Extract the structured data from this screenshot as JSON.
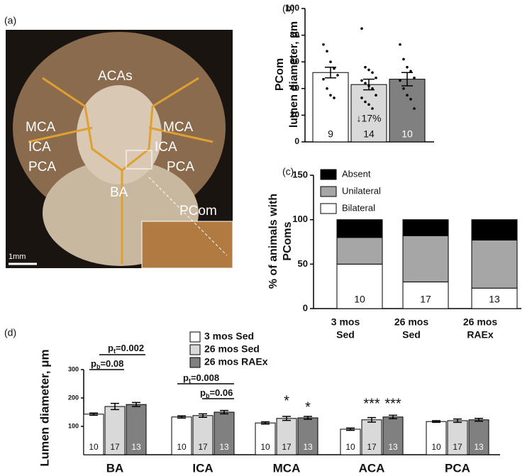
{
  "panel_labels": [
    "(a)",
    "(b)",
    "(c)",
    "(d)"
  ],
  "photo": {
    "labels": [
      "ACAs",
      "MCA",
      "ICA",
      "PCA",
      "MCA",
      "ICA",
      "PCA",
      "BA",
      "PCom"
    ],
    "scale_bar": "1mm"
  },
  "chart_data": [
    {
      "type": "bar",
      "ylabel": [
        "PCom",
        "lumen diameter, μm"
      ],
      "categories": [
        "3 mos Sed",
        "26 mos Sed",
        "26 mos RAEx"
      ],
      "values": [
        52,
        43,
        47
      ],
      "errors": [
        4,
        4,
        5
      ],
      "counts": [
        9,
        14,
        10
      ],
      "colors": [
        "#ffffff",
        "#d9d9d9",
        "#808080"
      ],
      "points": [
        [
          73,
          68,
          60,
          55,
          50,
          47,
          40,
          35,
          33
        ],
        [
          85,
          56,
          54,
          52,
          48,
          46,
          44,
          42,
          40,
          35,
          33,
          30,
          28,
          25
        ],
        [
          73,
          62,
          56,
          53,
          48,
          46,
          40,
          35,
          32,
          25
        ]
      ],
      "annotation": "↓17%",
      "ylim": [
        0,
        100
      ],
      "yticks": [
        0,
        20,
        40,
        60,
        80,
        100
      ]
    },
    {
      "type": "stacked_bar",
      "ylabel": [
        "% of animals with",
        "PComs"
      ],
      "categories": [
        [
          "3 mos",
          "Sed"
        ],
        [
          "26 mos",
          "Sed"
        ],
        [
          "26 mos",
          "RAEx"
        ]
      ],
      "series": [
        {
          "name": "Bilateral",
          "color": "#ffffff",
          "values": [
            50,
            30,
            23
          ]
        },
        {
          "name": "Unilateral",
          "color": "#a6a6a6",
          "values": [
            30,
            52,
            54
          ]
        },
        {
          "name": "Absent",
          "color": "#000000",
          "values": [
            20,
            18,
            23
          ]
        }
      ],
      "counts": [
        10,
        17,
        13
      ],
      "ylim": [
        0,
        150
      ],
      "yticks": [
        0,
        50,
        100,
        150
      ]
    },
    {
      "type": "grouped_bar",
      "ylabel": "Lumen diameter, μm",
      "categories": [
        "BA",
        "ICA",
        "MCA",
        "ACA",
        "PCA"
      ],
      "series": [
        {
          "name": "3 mos Sed",
          "color": "#ffffff",
          "values": [
            143,
            133,
            112,
            90,
            117
          ],
          "errors": [
            4,
            4,
            4,
            4,
            3
          ],
          "count": 10
        },
        {
          "name": "26 mos Sed",
          "color": "#d9d9d9",
          "values": [
            170,
            138,
            128,
            123,
            120
          ],
          "errors": [
            11,
            6,
            7,
            8,
            6
          ],
          "count": 17
        },
        {
          "name": "26 mos RAEx",
          "color": "#808080",
          "values": [
            177,
            150,
            130,
            133,
            123
          ],
          "errors": [
            7,
            6,
            5,
            6,
            5
          ],
          "count": 13
        }
      ],
      "annotations": [
        {
          "p": "p",
          "sub": "t",
          "text": "=0.002"
        },
        {
          "p": "p",
          "sub": "b",
          "text": "=0.08"
        },
        {
          "p": "p",
          "sub": "t",
          "text": "=0.008"
        },
        {
          "p": "p",
          "sub": "b",
          "text": "=0.06"
        }
      ],
      "stars": [
        "*",
        "*",
        "***",
        "***"
      ],
      "ylim": [
        0,
        300
      ],
      "yticks": [
        100,
        200,
        300
      ]
    }
  ]
}
